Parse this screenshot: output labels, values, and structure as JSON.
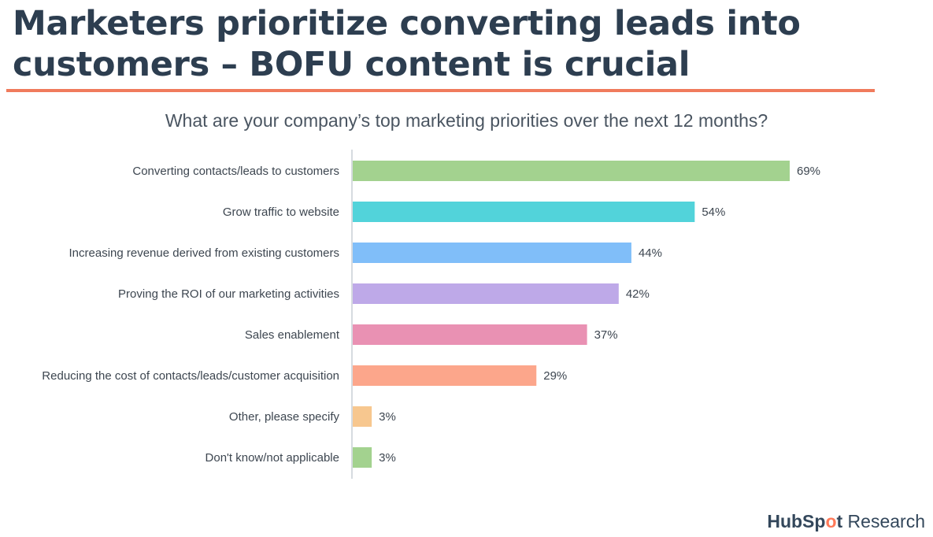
{
  "title": "Marketers prioritize converting leads into customers – BOFU content is crucial",
  "chart_data": {
    "type": "bar",
    "orientation": "horizontal",
    "title": "What are your company’s top marketing priorities over the next 12 months?",
    "xlabel": "",
    "ylabel": "",
    "xlim": [
      0,
      69
    ],
    "categories": [
      "Converting contacts/leads to customers",
      "Grow traffic to website",
      "Increasing revenue derived from existing customers",
      "Proving the ROI of our marketing activities",
      "Sales enablement",
      "Reducing the cost of contacts/leads/customer  acquisition",
      "Other, please specify",
      "Don't know/not applicable"
    ],
    "values": [
      69,
      54,
      44,
      42,
      37,
      29,
      3,
      3
    ],
    "value_labels": [
      "69%",
      "54%",
      "44%",
      "42%",
      "37%",
      "29%",
      "3%",
      "3%"
    ],
    "colors": [
      "#a3d28f",
      "#52d3da",
      "#80bef9",
      "#bea9e8",
      "#e991b3",
      "#fca68b",
      "#f7c78f",
      "#a3d28f"
    ],
    "grid": false,
    "legend": "none"
  },
  "brand": {
    "name_part1": "HubSp",
    "name_dot": "o",
    "name_part2": "t",
    "suffix": " Research"
  }
}
